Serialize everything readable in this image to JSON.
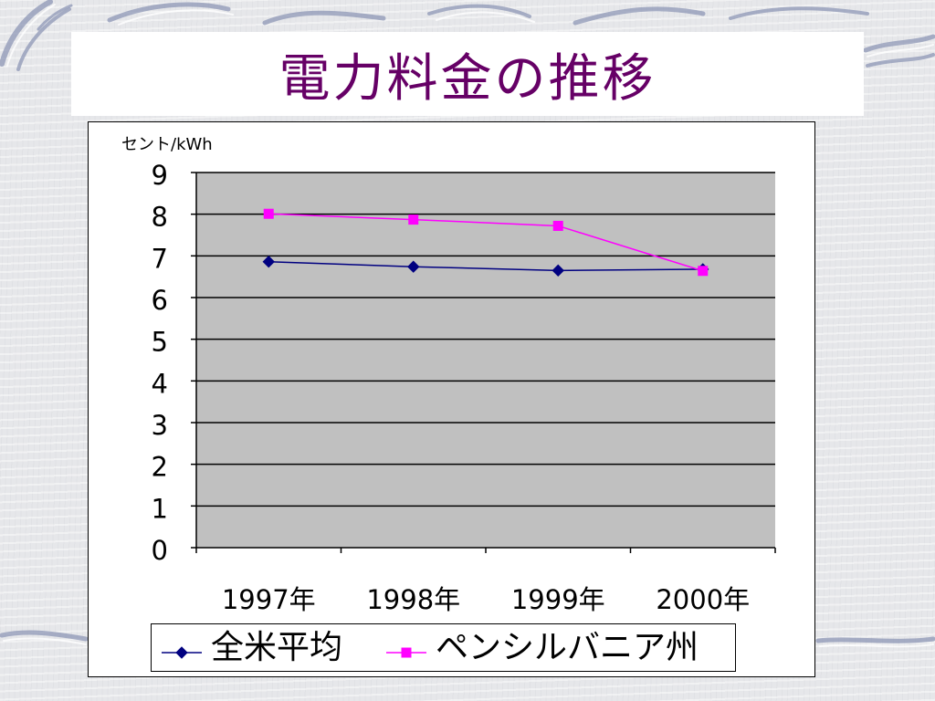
{
  "chart_data": {
    "type": "line",
    "title": "電力料金の推移",
    "ylabel": "セント/kWh",
    "categories": [
      "1997年",
      "1998年",
      "1999年",
      "2000年"
    ],
    "ylim": [
      0,
      9
    ],
    "yticks": [
      0,
      1,
      2,
      3,
      4,
      5,
      6,
      7,
      8,
      9
    ],
    "grid": true,
    "legend": "bottom",
    "plot_background": "#C0C0C0",
    "series": [
      {
        "name": "全米平均",
        "values": [
          6.86,
          6.74,
          6.65,
          6.68
        ],
        "color": "#000080",
        "marker": "diamond"
      },
      {
        "name": "ペンシルバニア州",
        "values": [
          8.01,
          7.87,
          7.72,
          6.64
        ],
        "color": "#FF00FF",
        "marker": "square"
      }
    ]
  },
  "colors": {
    "title": "#660066",
    "frame": "#000000"
  }
}
